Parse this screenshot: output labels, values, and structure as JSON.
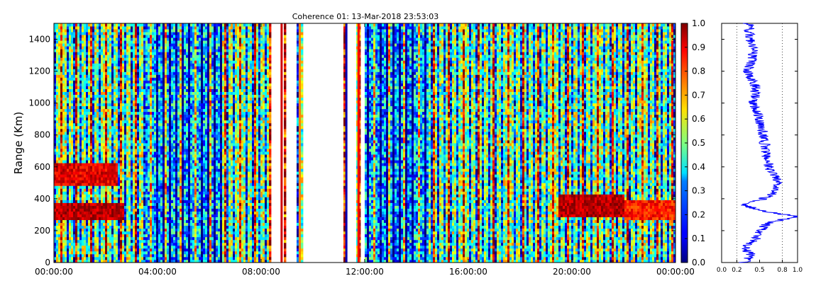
{
  "chart_data": [
    {
      "type": "heatmap",
      "title": "Coherence 01: 13-Mar-2018 23:53:03",
      "xlabel": "",
      "ylabel": "Range (Km)",
      "x_tick_labels": [
        "00:00:00",
        "04:00:00",
        "08:00:00",
        "12:00:00",
        "16:00:00",
        "20:00:00",
        "00:00:00"
      ],
      "xlim_hours": [
        0,
        24
      ],
      "y_ticks": [
        0,
        200,
        400,
        600,
        800,
        1000,
        1200,
        1400
      ],
      "ylim": [
        0,
        1500
      ],
      "colorbar": {
        "ticks": [
          "0.0",
          "0.1",
          "0.2",
          "0.3",
          "0.4",
          "0.5",
          "0.6",
          "0.7",
          "0.8",
          "0.9",
          "1.0"
        ],
        "range": [
          0,
          1
        ],
        "colormap": "jet"
      },
      "data_gaps_hours": [
        [
          8.4,
          8.9
        ],
        [
          9.0,
          9.4
        ],
        [
          9.6,
          11.2
        ],
        [
          11.3,
          11.65
        ],
        [
          11.8,
          12.0
        ]
      ],
      "features": [
        {
          "hours": [
            0,
            2.7
          ],
          "range_km": [
            270,
            380
          ],
          "value": 0.95
        },
        {
          "hours": [
            0,
            2.5
          ],
          "range_km": [
            480,
            620
          ],
          "value": 0.9
        },
        {
          "hours": [
            19.5,
            22
          ],
          "range_km": [
            280,
            420
          ],
          "value": 0.95
        },
        {
          "hours": [
            22,
            24
          ],
          "range_km": [
            260,
            400
          ],
          "value": 0.85
        }
      ]
    },
    {
      "type": "line",
      "series": [
        {
          "values_by_range_km": [
            [
              0,
              0.3
            ],
            [
              50,
              0.38
            ],
            [
              100,
              0.3
            ],
            [
              150,
              0.45
            ],
            [
              200,
              0.5
            ],
            [
              250,
              0.62
            ],
            [
              290,
              0.98
            ],
            [
              320,
              0.55
            ],
            [
              360,
              0.3
            ],
            [
              400,
              0.55
            ],
            [
              450,
              0.72
            ],
            [
              500,
              0.75
            ],
            [
              560,
              0.68
            ],
            [
              600,
              0.62
            ],
            [
              700,
              0.58
            ],
            [
              800,
              0.55
            ],
            [
              900,
              0.5
            ],
            [
              1000,
              0.42
            ],
            [
              1100,
              0.45
            ],
            [
              1200,
              0.35
            ],
            [
              1300,
              0.42
            ],
            [
              1400,
              0.38
            ],
            [
              1500,
              0.35
            ]
          ]
        }
      ],
      "x_tick_labels": [
        "0.0",
        "0.2",
        "0.5",
        "0.8",
        "1.0"
      ],
      "x_ticks": [
        0.0,
        0.2,
        0.5,
        0.8,
        1.0
      ],
      "xlim": [
        0,
        1
      ],
      "ylim": [
        0,
        1500
      ],
      "gridlines_x": [
        0.2,
        0.8
      ],
      "line_color": "#0000ff"
    }
  ]
}
